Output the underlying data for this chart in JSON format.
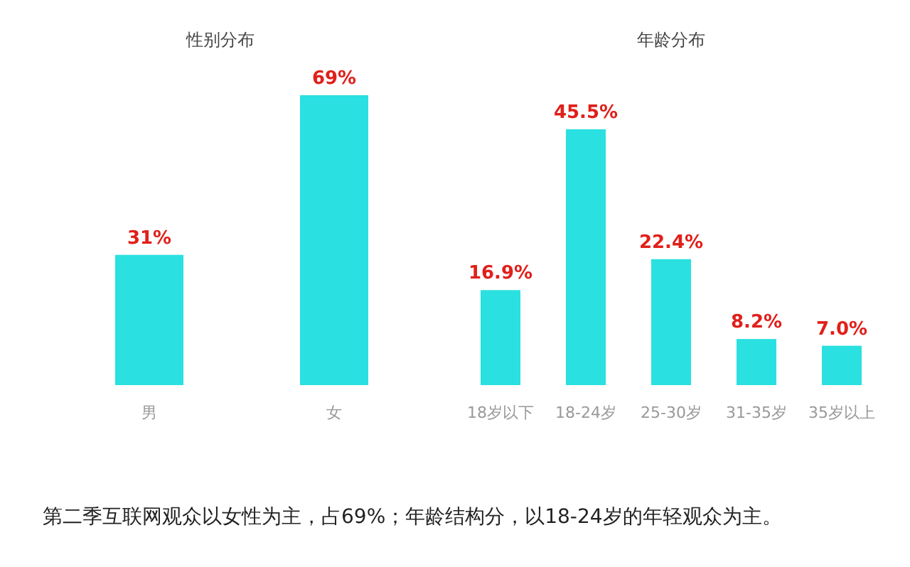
{
  "chart_data": [
    {
      "type": "bar",
      "title": "性别分布",
      "categories": [
        "男",
        "女"
      ],
      "series": [
        {
          "color": "#2ae0e0",
          "values": [
            31,
            69
          ],
          "value_labels": [
            "31%",
            "69%"
          ]
        }
      ]
    },
    {
      "type": "bar",
      "title": "年龄分布",
      "categories": [
        "18岁以下",
        "18-24岁",
        "25-30岁",
        "31-35岁",
        "35岁以上"
      ],
      "series": [
        {
          "color": "#2ae0e0",
          "values": [
            16.9,
            45.5,
            22.4,
            8.2,
            7.0
          ],
          "value_labels": [
            "16.9%",
            "45.5%",
            "22.4%",
            "8.2%",
            "7.0%"
          ]
        }
      ],
      "annotations": [
        "第二季互联网观众以女性为主，占69%；年龄结构分，以18-24岁的年轻观众为主。"
      ]
    }
  ]
}
